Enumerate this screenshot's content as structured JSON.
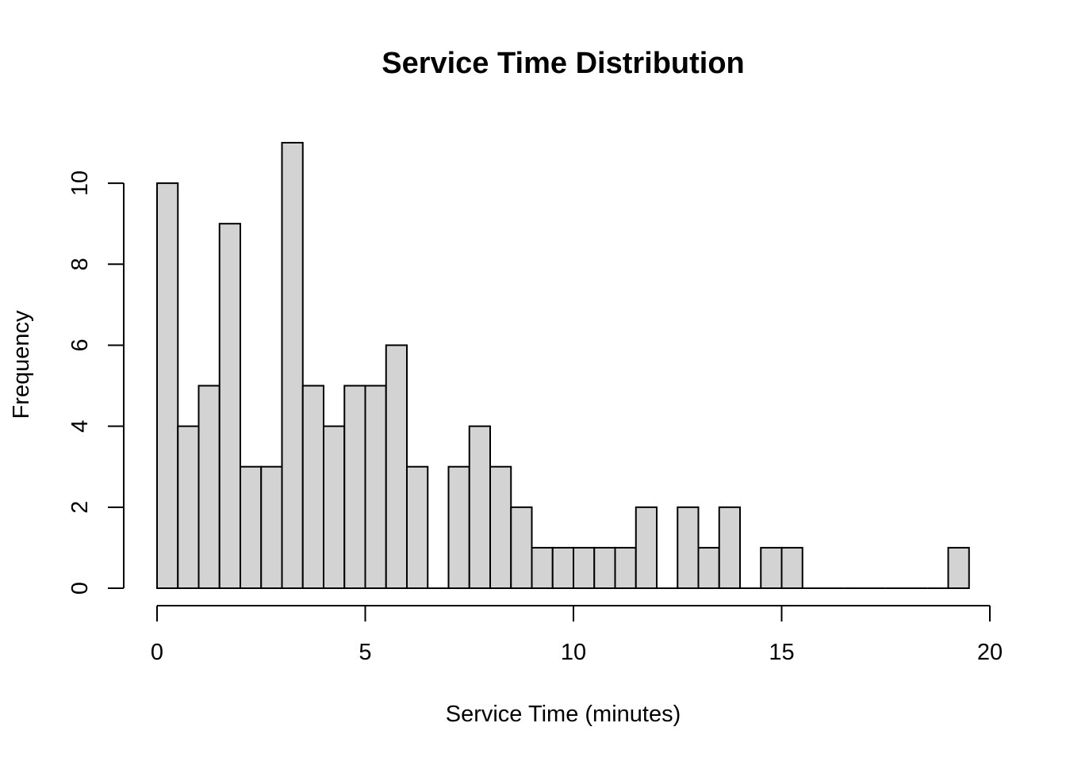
{
  "chart_data": {
    "type": "bar",
    "subtype": "histogram",
    "title": "Service Time Distribution",
    "xlabel": "Service Time (minutes)",
    "ylabel": "Frequency",
    "bin_width": 0.5,
    "bin_start": 0,
    "counts": [
      10,
      4,
      5,
      9,
      3,
      3,
      11,
      5,
      4,
      5,
      5,
      6,
      3,
      0,
      3,
      4,
      3,
      2,
      1,
      1,
      1,
      1,
      1,
      2,
      0,
      2,
      1,
      2,
      0,
      1,
      1,
      0,
      0,
      0,
      0,
      0,
      0,
      0,
      1
    ],
    "xlim": [
      0,
      20
    ],
    "ylim": [
      0,
      11
    ],
    "x_ticks": [
      0,
      5,
      10,
      15,
      20
    ],
    "y_ticks": [
      0,
      2,
      4,
      6,
      8,
      10
    ],
    "x_tick_labels": [
      "0",
      "5",
      "10",
      "15",
      "20"
    ],
    "y_tick_labels": [
      "0",
      "2",
      "4",
      "6",
      "8",
      "10"
    ],
    "bar_fill": "#d3d3d3",
    "bar_stroke": "#000000",
    "grid": false,
    "legend": "none"
  }
}
